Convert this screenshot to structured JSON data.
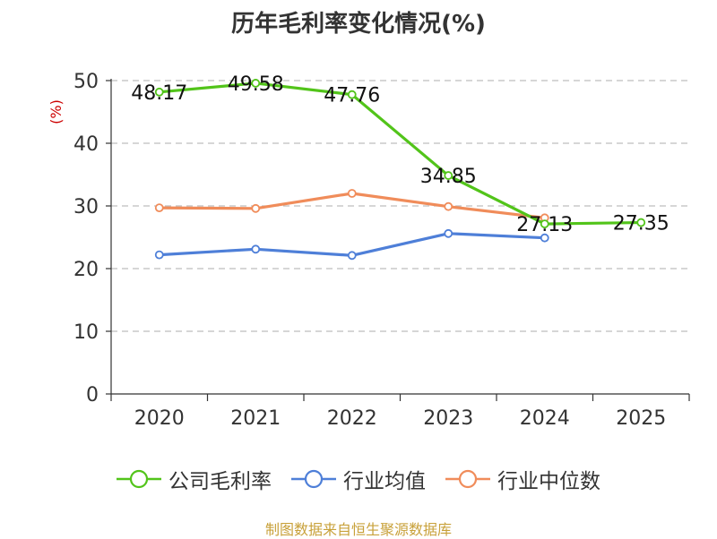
{
  "chart_data": {
    "type": "line",
    "title": "历年毛利率变化情况(%)",
    "ylabel": "(%)",
    "xlabel": "",
    "categories": [
      "2020",
      "2021",
      "2022",
      "2023",
      "2024",
      "2025"
    ],
    "ylim": [
      0,
      50
    ],
    "yticks": [
      0,
      10,
      20,
      30,
      40,
      50
    ],
    "grid": true,
    "legend_position": "bottom",
    "series": [
      {
        "name": "公司毛利率",
        "color": "#52c41a",
        "values": [
          48.17,
          49.58,
          47.76,
          34.85,
          27.13,
          27.35
        ],
        "labels": [
          "48.17",
          "49.58",
          "47.76",
          "34.85",
          "27.13",
          "27.35"
        ]
      },
      {
        "name": "行业均值",
        "color": "#4e7fd8",
        "values": [
          22.2,
          23.1,
          22.1,
          25.6,
          24.9,
          null
        ]
      },
      {
        "name": "行业中位数",
        "color": "#f08c5a",
        "values": [
          29.7,
          29.6,
          32.0,
          29.9,
          28.1,
          null
        ]
      }
    ]
  },
  "source": "制图数据来自恒生聚源数据库"
}
